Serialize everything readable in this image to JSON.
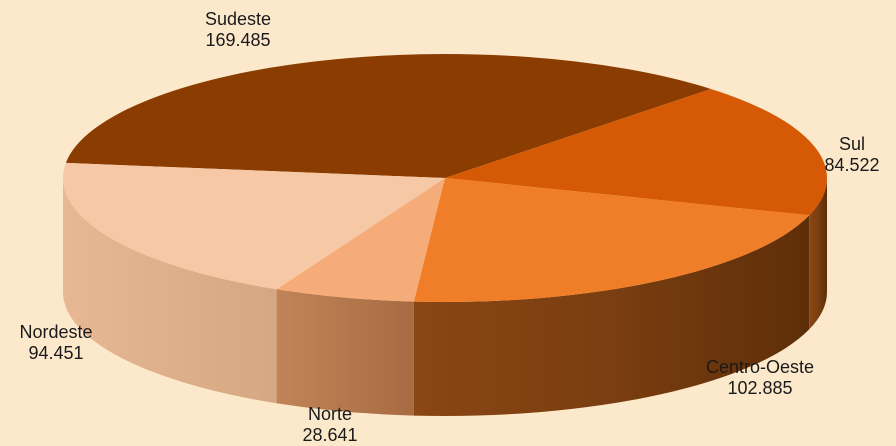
{
  "chart_data": {
    "type": "pie",
    "title": "",
    "slices": [
      {
        "label": "Sudeste",
        "value": 169485,
        "display": "169.485",
        "color": "#8b3c00"
      },
      {
        "label": "Sul",
        "value": 84522,
        "display": "84.522",
        "color": "#d65a05"
      },
      {
        "label": "Centro-Oeste",
        "value": 102885,
        "display": "102.885",
        "color": "#f07e28"
      },
      {
        "label": "Norte",
        "value": 28641,
        "display": "28.641",
        "color": "#f5ac78"
      },
      {
        "label": "Nordeste",
        "value": 94451,
        "display": "94.451",
        "color": "#f6c8a6"
      }
    ],
    "style": "3d",
    "legend": "none"
  }
}
